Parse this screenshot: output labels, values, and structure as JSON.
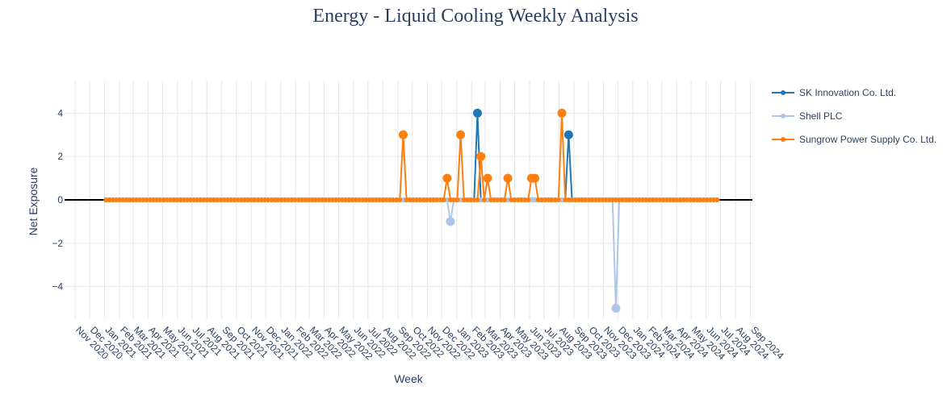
{
  "chart_data": {
    "type": "line",
    "title": "Energy - Liquid Cooling Weekly Analysis",
    "xlabel": "Week",
    "ylabel": "Net Exposure",
    "xlim": [
      "2020-10-10",
      "2024-09-05"
    ],
    "ylim": [
      -5.5,
      5.5
    ],
    "yticks": [
      -4,
      -2,
      0,
      2,
      4
    ],
    "xticks": [
      {
        "date": "2020-11-01",
        "label": "Nov 2020"
      },
      {
        "date": "2020-12-01",
        "label": "Dec 2020"
      },
      {
        "date": "2021-01-01",
        "label": "Jan 2021"
      },
      {
        "date": "2021-02-01",
        "label": "Feb 2021"
      },
      {
        "date": "2021-03-01",
        "label": "Mar 2021"
      },
      {
        "date": "2021-04-01",
        "label": "Apr 2021"
      },
      {
        "date": "2021-05-01",
        "label": "May 2021"
      },
      {
        "date": "2021-06-01",
        "label": "Jun 2021"
      },
      {
        "date": "2021-07-01",
        "label": "Jul 2021"
      },
      {
        "date": "2021-08-01",
        "label": "Aug 2021"
      },
      {
        "date": "2021-09-01",
        "label": "Sep 2021"
      },
      {
        "date": "2021-10-01",
        "label": "Oct 2021"
      },
      {
        "date": "2021-11-01",
        "label": "Nov 2021"
      },
      {
        "date": "2021-12-01",
        "label": "Dec 2021"
      },
      {
        "date": "2022-01-01",
        "label": "Jan 2022"
      },
      {
        "date": "2022-02-01",
        "label": "Feb 2022"
      },
      {
        "date": "2022-03-01",
        "label": "Mar 2022"
      },
      {
        "date": "2022-04-01",
        "label": "Apr 2022"
      },
      {
        "date": "2022-05-01",
        "label": "May 2022"
      },
      {
        "date": "2022-06-01",
        "label": "Jun 2022"
      },
      {
        "date": "2022-07-01",
        "label": "Jul 2022"
      },
      {
        "date": "2022-08-01",
        "label": "Aug 2022"
      },
      {
        "date": "2022-09-01",
        "label": "Sep 2022"
      },
      {
        "date": "2022-10-01",
        "label": "Oct 2022"
      },
      {
        "date": "2022-11-01",
        "label": "Nov 2022"
      },
      {
        "date": "2022-12-01",
        "label": "Dec 2022"
      },
      {
        "date": "2023-01-01",
        "label": "Jan 2023"
      },
      {
        "date": "2023-02-01",
        "label": "Feb 2023"
      },
      {
        "date": "2023-03-01",
        "label": "Mar 2023"
      },
      {
        "date": "2023-04-01",
        "label": "Apr 2023"
      },
      {
        "date": "2023-05-01",
        "label": "May 2023"
      },
      {
        "date": "2023-06-01",
        "label": "Jun 2023"
      },
      {
        "date": "2023-07-01",
        "label": "Jul 2023"
      },
      {
        "date": "2023-08-01",
        "label": "Aug 2023"
      },
      {
        "date": "2023-09-01",
        "label": "Sep 2023"
      },
      {
        "date": "2023-10-01",
        "label": "Oct 2023"
      },
      {
        "date": "2023-11-01",
        "label": "Nov 2023"
      },
      {
        "date": "2023-12-01",
        "label": "Dec 2023"
      },
      {
        "date": "2024-01-01",
        "label": "Jan 2024"
      },
      {
        "date": "2024-02-01",
        "label": "Feb 2024"
      },
      {
        "date": "2024-03-01",
        "label": "Mar 2024"
      },
      {
        "date": "2024-04-01",
        "label": "Apr 2024"
      },
      {
        "date": "2024-05-01",
        "label": "May 2024"
      },
      {
        "date": "2024-06-01",
        "label": "Jun 2024"
      },
      {
        "date": "2024-07-01",
        "label": "Jul 2024"
      },
      {
        "date": "2024-08-01",
        "label": "Aug 2024"
      },
      {
        "date": "2024-09-01",
        "label": "Sep 2024"
      }
    ],
    "grid": true,
    "legend_position": "right",
    "zero_line": true,
    "week_range": [
      "2021-01-04",
      "2024-06-24"
    ],
    "series": [
      {
        "name": "SK Innovation Co. Ltd.",
        "color": "#1f77b4",
        "points": [
          {
            "x": "2023-02-06",
            "y": 0
          },
          {
            "x": "2023-02-13",
            "y": 4
          },
          {
            "x": "2023-02-20",
            "y": 0
          },
          {
            "x": "2023-08-14",
            "y": 0
          },
          {
            "x": "2023-08-21",
            "y": 3
          },
          {
            "x": "2023-08-28",
            "y": 0
          }
        ]
      },
      {
        "name": "Shell PLC",
        "color": "#aec7e8",
        "points": [
          {
            "x": "2022-12-12",
            "y": 0
          },
          {
            "x": "2022-12-19",
            "y": -1
          },
          {
            "x": "2022-12-26",
            "y": 0
          },
          {
            "x": "2023-11-20",
            "y": 0
          },
          {
            "x": "2023-11-27",
            "y": -5
          },
          {
            "x": "2023-12-04",
            "y": 0
          }
        ]
      },
      {
        "name": "Sungrow Power Supply Co. Ltd.",
        "color": "#ff7f0e",
        "points": [
          {
            "x": "2022-09-12",
            "y": 3
          },
          {
            "x": "2022-12-12",
            "y": 1
          },
          {
            "x": "2023-01-09",
            "y": 3
          },
          {
            "x": "2023-02-20",
            "y": 2
          },
          {
            "x": "2023-03-06",
            "y": 1
          },
          {
            "x": "2023-04-17",
            "y": 1
          },
          {
            "x": "2023-06-05",
            "y": 1
          },
          {
            "x": "2023-06-12",
            "y": 1
          },
          {
            "x": "2023-08-07",
            "y": 4
          }
        ]
      }
    ]
  }
}
